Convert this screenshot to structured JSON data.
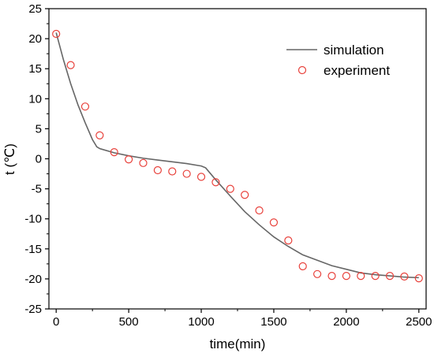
{
  "chart_data": {
    "type": "line",
    "xlabel": "time(min)",
    "ylabel": "t (℃)",
    "xlim": [
      -50,
      2550
    ],
    "ylim": [
      -25,
      25
    ],
    "x_ticks": [
      0,
      500,
      1000,
      1500,
      2000,
      2500
    ],
    "y_ticks": [
      25,
      20,
      15,
      10,
      5,
      0,
      -5,
      -10,
      -15,
      -20,
      -25
    ],
    "x_tick_labels": [
      "0",
      "500",
      "1000",
      "1500",
      "2000",
      "2500"
    ],
    "y_tick_labels": [
      "25",
      "20",
      "15",
      "10",
      "5",
      "0",
      "-5",
      "-10",
      "-15",
      "-20",
      "-25"
    ],
    "legend_position": "top-right",
    "grid": false,
    "series": [
      {
        "name": "simulation",
        "kind": "line",
        "color": "#666666",
        "points": [
          [
            0,
            21
          ],
          [
            50,
            16.5
          ],
          [
            100,
            12.5
          ],
          [
            150,
            9.0
          ],
          [
            200,
            6.0
          ],
          [
            250,
            3.2
          ],
          [
            280,
            2.0
          ],
          [
            300,
            1.7
          ],
          [
            400,
            1.0
          ],
          [
            500,
            0.5
          ],
          [
            600,
            0.1
          ],
          [
            700,
            -0.2
          ],
          [
            800,
            -0.5
          ],
          [
            900,
            -0.8
          ],
          [
            1000,
            -1.2
          ],
          [
            1030,
            -1.5
          ],
          [
            1100,
            -3.5
          ],
          [
            1200,
            -6.2
          ],
          [
            1300,
            -8.8
          ],
          [
            1400,
            -11.0
          ],
          [
            1500,
            -13.0
          ],
          [
            1600,
            -14.6
          ],
          [
            1700,
            -16.0
          ],
          [
            1800,
            -16.9
          ],
          [
            1900,
            -17.8
          ],
          [
            2000,
            -18.4
          ],
          [
            2100,
            -19.0
          ],
          [
            2200,
            -19.3
          ],
          [
            2300,
            -19.5
          ],
          [
            2400,
            -19.7
          ],
          [
            2500,
            -19.8
          ]
        ]
      },
      {
        "name": "experiment",
        "kind": "scatter",
        "color": "#e8413b",
        "points": [
          [
            0,
            20.8
          ],
          [
            100,
            15.6
          ],
          [
            200,
            8.7
          ],
          [
            300,
            3.9
          ],
          [
            400,
            1.1
          ],
          [
            500,
            -0.1
          ],
          [
            600,
            -0.7
          ],
          [
            700,
            -1.9
          ],
          [
            800,
            -2.1
          ],
          [
            900,
            -2.5
          ],
          [
            1000,
            -3.0
          ],
          [
            1100,
            -3.9
          ],
          [
            1200,
            -5.0
          ],
          [
            1300,
            -6.0
          ],
          [
            1400,
            -8.6
          ],
          [
            1500,
            -10.6
          ],
          [
            1600,
            -13.6
          ],
          [
            1700,
            -17.9
          ],
          [
            1800,
            -19.2
          ],
          [
            1900,
            -19.5
          ],
          [
            2000,
            -19.5
          ],
          [
            2100,
            -19.5
          ],
          [
            2200,
            -19.5
          ],
          [
            2300,
            -19.5
          ],
          [
            2400,
            -19.6
          ],
          [
            2500,
            -19.9
          ]
        ]
      }
    ]
  }
}
